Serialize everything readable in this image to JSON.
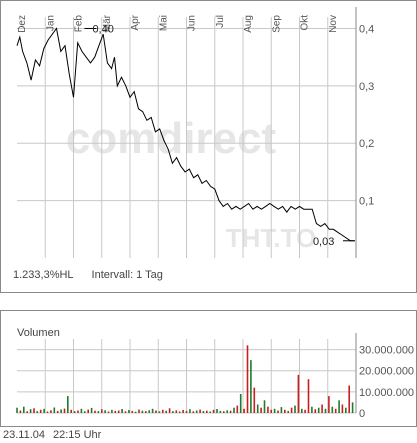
{
  "watermark": {
    "brand": "comdirect",
    "ticker": "THT.TO"
  },
  "price_info": {
    "change": "1.233,3%HL",
    "interval": "Intervall: 1 Tag"
  },
  "volume_title": "Volumen",
  "footer": {
    "date": "23.11.04",
    "time": "22:15 Uhr"
  },
  "colors": {
    "price_line": "#000000",
    "grid": "#c8c8c8",
    "volume_up": "#1e7a2e",
    "volume_down": "#c81e1e",
    "frame": "#8a8a8a"
  },
  "chart_data": [
    {
      "type": "line",
      "name": "price",
      "months": [
        "Dez",
        "Jan",
        "Feb",
        "Mär",
        "Apr",
        "Mai",
        "Jun",
        "Jul",
        "Aug",
        "Sep",
        "Okt",
        "Nov"
      ],
      "ylim": [
        0,
        0.42
      ],
      "yticks": [
        0.1,
        0.2,
        0.3,
        0.4
      ],
      "ytick_labels": [
        "0,1",
        "0,2",
        "0,3",
        "0,4"
      ],
      "grid": true,
      "annotations": [
        {
          "label": "0,40",
          "x": 2.6,
          "y": 0.4
        },
        {
          "label": "0,03",
          "x": 11.75,
          "y": 0.03
        }
      ],
      "x": [
        0.0,
        0.1,
        0.2,
        0.35,
        0.5,
        0.65,
        0.8,
        0.95,
        1.1,
        1.25,
        1.4,
        1.55,
        1.7,
        1.85,
        2.0,
        2.15,
        2.3,
        2.45,
        2.6,
        2.75,
        2.9,
        3.05,
        3.2,
        3.35,
        3.45,
        3.55,
        3.7,
        3.85,
        4.0,
        4.15,
        4.3,
        4.45,
        4.6,
        4.75,
        4.9,
        5.05,
        5.2,
        5.35,
        5.5,
        5.65,
        5.8,
        5.95,
        6.1,
        6.25,
        6.4,
        6.55,
        6.7,
        6.85,
        7.0,
        7.15,
        7.3,
        7.45,
        7.6,
        7.75,
        7.9,
        8.05,
        8.2,
        8.35,
        8.5,
        8.65,
        8.8,
        8.95,
        9.1,
        9.25,
        9.4,
        9.55,
        9.7,
        9.85,
        10.0,
        10.15,
        10.3,
        10.45,
        10.6,
        10.75,
        10.9,
        11.05,
        11.2,
        11.35,
        11.5,
        11.65,
        11.8,
        11.95
      ],
      "y": [
        0.37,
        0.385,
        0.36,
        0.34,
        0.31,
        0.345,
        0.335,
        0.365,
        0.38,
        0.39,
        0.4,
        0.36,
        0.37,
        0.32,
        0.28,
        0.375,
        0.36,
        0.35,
        0.34,
        0.35,
        0.37,
        0.39,
        0.34,
        0.33,
        0.35,
        0.3,
        0.315,
        0.3,
        0.28,
        0.29,
        0.26,
        0.255,
        0.24,
        0.245,
        0.22,
        0.225,
        0.205,
        0.19,
        0.165,
        0.175,
        0.16,
        0.15,
        0.155,
        0.14,
        0.145,
        0.13,
        0.135,
        0.125,
        0.12,
        0.1,
        0.09,
        0.095,
        0.085,
        0.09,
        0.085,
        0.09,
        0.095,
        0.085,
        0.09,
        0.085,
        0.09,
        0.095,
        0.09,
        0.085,
        0.09,
        0.08,
        0.09,
        0.085,
        0.09,
        0.085,
        0.085,
        0.085,
        0.06,
        0.055,
        0.06,
        0.05,
        0.05,
        0.045,
        0.04,
        0.035,
        0.03,
        0.03
      ]
    },
    {
      "type": "bar",
      "name": "volume",
      "ylim": [
        0,
        35000000
      ],
      "yticks": [
        0,
        10000000,
        20000000,
        30000000
      ],
      "ytick_labels": [
        "0",
        "10.000.000",
        "20.000.000",
        "30.000.000"
      ],
      "x": [
        0.0,
        0.12,
        0.24,
        0.36,
        0.48,
        0.6,
        0.72,
        0.84,
        0.96,
        1.08,
        1.2,
        1.32,
        1.44,
        1.56,
        1.68,
        1.8,
        1.92,
        2.04,
        2.16,
        2.28,
        2.4,
        2.52,
        2.64,
        2.76,
        2.88,
        3.0,
        3.12,
        3.24,
        3.36,
        3.48,
        3.6,
        3.72,
        3.84,
        3.96,
        4.08,
        4.2,
        4.32,
        4.44,
        4.56,
        4.68,
        4.8,
        4.92,
        5.04,
        5.16,
        5.28,
        5.4,
        5.52,
        5.64,
        5.76,
        5.88,
        6.0,
        6.12,
        6.24,
        6.36,
        6.48,
        6.6,
        6.72,
        6.84,
        6.96,
        7.08,
        7.2,
        7.32,
        7.44,
        7.56,
        7.68,
        7.8,
        7.92,
        8.04,
        8.16,
        8.28,
        8.4,
        8.52,
        8.64,
        8.76,
        8.88,
        9.0,
        9.12,
        9.24,
        9.36,
        9.48,
        9.6,
        9.72,
        9.84,
        9.96,
        10.08,
        10.2,
        10.32,
        10.44,
        10.56,
        10.68,
        10.8,
        10.92,
        11.04,
        11.16,
        11.28,
        11.4,
        11.52,
        11.64,
        11.76,
        11.88
      ],
      "values": [
        2500000,
        1200000,
        3000000,
        800000,
        1800000,
        2200000,
        900000,
        1500000,
        2000000,
        700000,
        1300000,
        2600000,
        1000000,
        1700000,
        2100000,
        8000000,
        1500000,
        900000,
        1200000,
        2000000,
        800000,
        1600000,
        2400000,
        1100000,
        900000,
        1800000,
        1300000,
        700000,
        1500000,
        1000000,
        1200000,
        1900000,
        800000,
        1400000,
        1000000,
        600000,
        1600000,
        1100000,
        900000,
        1300000,
        2000000,
        1200000,
        800000,
        1500000,
        1100000,
        2200000,
        900000,
        1300000,
        700000,
        1400000,
        1000000,
        1800000,
        800000,
        1200000,
        1600000,
        900000,
        1100000,
        700000,
        1500000,
        1900000,
        1000000,
        800000,
        1300000,
        1100000,
        2500000,
        3500000,
        9000000,
        2000000,
        32000000,
        25000000,
        12000000,
        4000000,
        2500000,
        6000000,
        3000000,
        1500000,
        2000000,
        1200000,
        2800000,
        1500000,
        1000000,
        2500000,
        3500000,
        18000000,
        2000000,
        1500000,
        16000000,
        3000000,
        1800000,
        2500000,
        4000000,
        2000000,
        8000000,
        3000000,
        2000000,
        6000000,
        4000000,
        2500000,
        13000000,
        5000000
      ],
      "directions": [
        "u",
        "d",
        "u",
        "d",
        "u",
        "d",
        "u",
        "d",
        "u",
        "d",
        "d",
        "u",
        "d",
        "u",
        "d",
        "u",
        "d",
        "u",
        "d",
        "u",
        "u",
        "d",
        "u",
        "d",
        "u",
        "d",
        "u",
        "d",
        "u",
        "d",
        "d",
        "u",
        "d",
        "u",
        "d",
        "u",
        "d",
        "u",
        "d",
        "u",
        "u",
        "d",
        "u",
        "d",
        "u",
        "d",
        "u",
        "d",
        "u",
        "d",
        "d",
        "u",
        "d",
        "u",
        "d",
        "u",
        "d",
        "u",
        "d",
        "u",
        "u",
        "d",
        "u",
        "d",
        "u",
        "d",
        "u",
        "d",
        "d",
        "u",
        "d",
        "u",
        "d",
        "u",
        "d",
        "d",
        "u",
        "d",
        "u",
        "d",
        "u",
        "d",
        "u",
        "d",
        "u",
        "d",
        "d",
        "u",
        "d",
        "u",
        "d",
        "u",
        "d",
        "u",
        "d",
        "u",
        "d",
        "u",
        "d",
        "u"
      ]
    }
  ]
}
